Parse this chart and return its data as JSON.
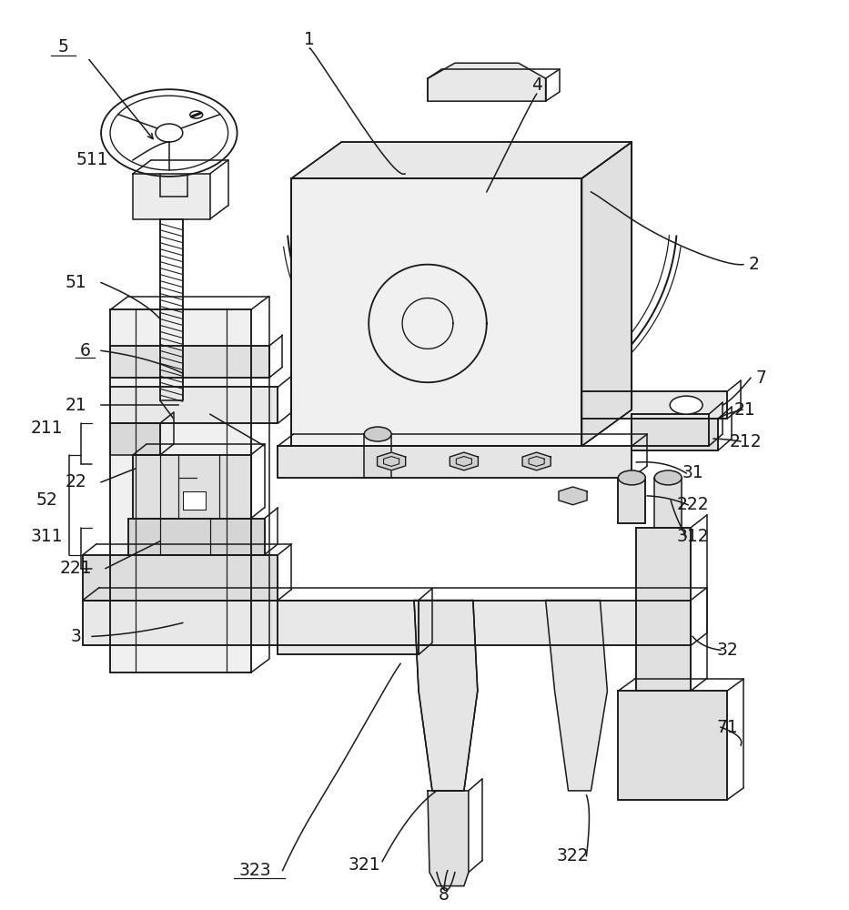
{
  "bg_color": "#ffffff",
  "lc": "#1a1a1a",
  "lw": 1.1,
  "fig_w": 9.33,
  "fig_h": 10.0,
  "dpi": 100
}
